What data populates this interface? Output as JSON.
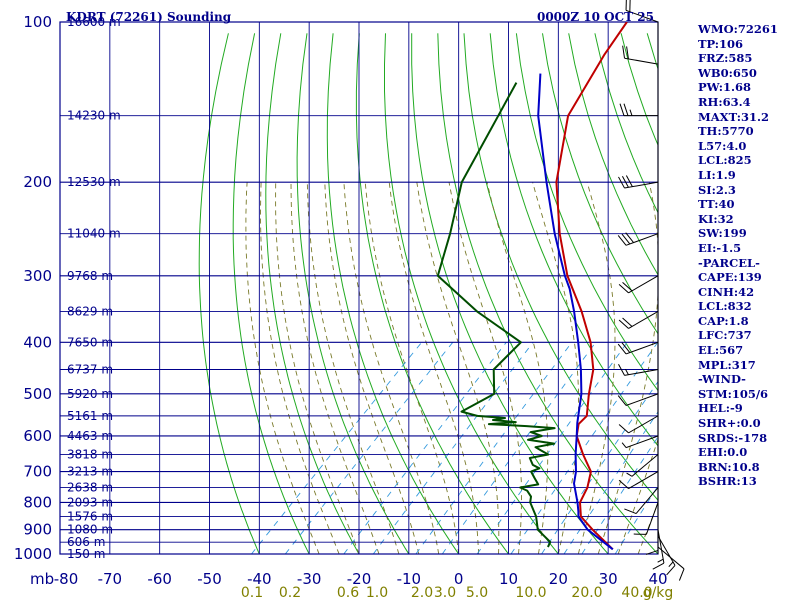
{
  "header": {
    "station": "KDRT (72261) Sounding",
    "time": "0000Z 10 OCT 25"
  },
  "colors": {
    "grid": "#00008b",
    "text": "#00008b",
    "temperature": "#c00000",
    "dewpoint": "#004d00",
    "parcel": "#0000c8",
    "dry_adiabat": "#22aa22",
    "moist_adiabat": "#7a7a2a",
    "mixing_ratio": "#3399dd",
    "mixing_ratio_label": "#808000",
    "wind": "#000000"
  },
  "chart_data": {
    "type": "line",
    "diagram": "skew-T log-P",
    "title": "KDRT (72261) Sounding",
    "xlabel": "",
    "ylabel": "mb",
    "xlim": [
      -80,
      40
    ],
    "ylim": [
      1000,
      100
    ],
    "yscale": "log",
    "grid": true,
    "y_ticks": [
      100,
      200,
      300,
      400,
      500,
      600,
      700,
      800,
      900,
      1000
    ],
    "x_ticks": [
      "-80",
      "-70",
      "-60",
      "-50",
      "-40",
      "-30",
      "-20",
      "-10",
      "0",
      "10",
      "20",
      "30",
      "40"
    ],
    "height_labels": [
      {
        "p": 100,
        "label": "16600 m"
      },
      {
        "p": 150,
        "label": "14230 m"
      },
      {
        "p": 200,
        "label": "12530 m"
      },
      {
        "p": 250,
        "label": "11040 m"
      },
      {
        "p": 300,
        "label": "9768 m"
      },
      {
        "p": 350,
        "label": "8629 m"
      },
      {
        "p": 400,
        "label": "7650 m"
      },
      {
        "p": 450,
        "label": "6737 m"
      },
      {
        "p": 500,
        "label": "5920 m"
      },
      {
        "p": 550,
        "label": "5161 m"
      },
      {
        "p": 600,
        "label": "4463 m"
      },
      {
        "p": 650,
        "label": "3818 m"
      },
      {
        "p": 700,
        "label": "3213 m"
      },
      {
        "p": 750,
        "label": "2638 m"
      },
      {
        "p": 800,
        "label": "2093 m"
      },
      {
        "p": 850,
        "label": "1576 m"
      },
      {
        "p": 900,
        "label": "1080 m"
      },
      {
        "p": 950,
        "label": "606 m"
      },
      {
        "p": 1000,
        "label": "150 m"
      }
    ],
    "mixing_ratio_labels": [
      "0.1",
      "0.2",
      "0.6",
      "1.0",
      "2.0",
      "3.0",
      "5.0",
      "10.0",
      "20.0",
      "40.0",
      "g/kg"
    ],
    "series": [
      {
        "name": "temperature",
        "points": [
          [
            980,
            30
          ],
          [
            900,
            22
          ],
          [
            850,
            17
          ],
          [
            800,
            14
          ],
          [
            750,
            12.5
          ],
          [
            700,
            10
          ],
          [
            650,
            5
          ],
          [
            600,
            0
          ],
          [
            570,
            -2
          ],
          [
            550,
            -2
          ],
          [
            500,
            -6
          ],
          [
            450,
            -10
          ],
          [
            400,
            -16
          ],
          [
            350,
            -24
          ],
          [
            300,
            -34
          ],
          [
            250,
            -44
          ],
          [
            200,
            -55
          ],
          [
            150,
            -66
          ],
          [
            115,
            -71
          ],
          [
            100,
            -73
          ]
        ]
      },
      {
        "name": "dewpoint",
        "points": [
          [
            970,
            16.5
          ],
          [
            950,
            16
          ],
          [
            900,
            11
          ],
          [
            850,
            8
          ],
          [
            800,
            4
          ],
          [
            780,
            3
          ],
          [
            760,
            1
          ],
          [
            750,
            -1
          ],
          [
            740,
            2
          ],
          [
            720,
            0
          ],
          [
            700,
            -2
          ],
          [
            690,
            -1
          ],
          [
            680,
            -3
          ],
          [
            660,
            -5
          ],
          [
            650,
            -2
          ],
          [
            640,
            -4
          ],
          [
            630,
            -6
          ],
          [
            620,
            -3
          ],
          [
            610,
            -9
          ],
          [
            600,
            -7
          ],
          [
            590,
            -10
          ],
          [
            580,
            -6
          ],
          [
            575,
            -12
          ],
          [
            570,
            -20
          ],
          [
            565,
            -15
          ],
          [
            560,
            -20
          ],
          [
            555,
            -18
          ],
          [
            550,
            -24
          ],
          [
            540,
            -28
          ],
          [
            500,
            -25
          ],
          [
            450,
            -30
          ],
          [
            400,
            -30
          ],
          [
            350,
            -45
          ],
          [
            300,
            -60
          ],
          [
            250,
            -66
          ],
          [
            200,
            -74
          ],
          [
            150,
            -80
          ],
          [
            130,
            -83
          ]
        ]
      },
      {
        "name": "parcel",
        "points": [
          [
            980,
            30
          ],
          [
            900,
            21
          ],
          [
            850,
            16.5
          ],
          [
            832,
            15.5
          ],
          [
            800,
            13.5
          ],
          [
            737,
            9
          ],
          [
            700,
            7
          ],
          [
            650,
            3.5
          ],
          [
            600,
            0
          ],
          [
            567,
            -2.5
          ],
          [
            500,
            -7.5
          ],
          [
            450,
            -12.5
          ],
          [
            400,
            -18.5
          ],
          [
            350,
            -25.5
          ],
          [
            317,
            -31
          ],
          [
            300,
            -34.5
          ],
          [
            250,
            -45
          ],
          [
            200,
            -57
          ],
          [
            150,
            -72
          ],
          [
            125,
            -80
          ]
        ]
      }
    ]
  },
  "wind_barbs": [
    {
      "p": 970,
      "dir": 130,
      "spd": 10
    },
    {
      "p": 925,
      "dir": 150,
      "spd": 15
    },
    {
      "p": 900,
      "dir": 170,
      "spd": 15
    },
    {
      "p": 850,
      "dir": 180,
      "spd": 10
    },
    {
      "p": 800,
      "dir": 200,
      "spd": 10
    },
    {
      "p": 750,
      "dir": 220,
      "spd": 10
    },
    {
      "p": 700,
      "dir": 240,
      "spd": 10
    },
    {
      "p": 650,
      "dir": 230,
      "spd": 5
    },
    {
      "p": 600,
      "dir": 250,
      "spd": 5
    },
    {
      "p": 550,
      "dir": 240,
      "spd": 10
    },
    {
      "p": 500,
      "dir": 250,
      "spd": 10
    },
    {
      "p": 450,
      "dir": 260,
      "spd": 15
    },
    {
      "p": 400,
      "dir": 250,
      "spd": 20
    },
    {
      "p": 350,
      "dir": 240,
      "spd": 20
    },
    {
      "p": 300,
      "dir": 240,
      "spd": 20
    },
    {
      "p": 250,
      "dir": 250,
      "spd": 30
    },
    {
      "p": 200,
      "dir": 260,
      "spd": 30
    },
    {
      "p": 150,
      "dir": 270,
      "spd": 25
    },
    {
      "p": 120,
      "dir": 280,
      "spd": 20
    },
    {
      "p": 100,
      "dir": 290,
      "spd": 20
    }
  ],
  "indices": [
    "WMO:72261",
    "TP:106",
    "FRZ:585",
    "WB0:650",
    "PW:1.68",
    "RH:63.4",
    "MAXT:31.2",
    "TH:5770",
    "L57:4.0",
    "LCL:825",
    "LI:1.9",
    "SI:2.3",
    "TT:40",
    "KI:32",
    "SW:199",
    "EI:-1.5",
    "-PARCEL-",
    "CAPE:139",
    "CINH:42",
    "LCL:832",
    "CAP:1.8",
    "LFC:737",
    "EL:567",
    "MPL:317",
    "-WIND-",
    "STM:105/6",
    "HEL:-9",
    "SHR+:0.0",
    "SRDS:-178",
    "EHI:0.0",
    "BRN:10.8",
    "BSHR:13"
  ]
}
